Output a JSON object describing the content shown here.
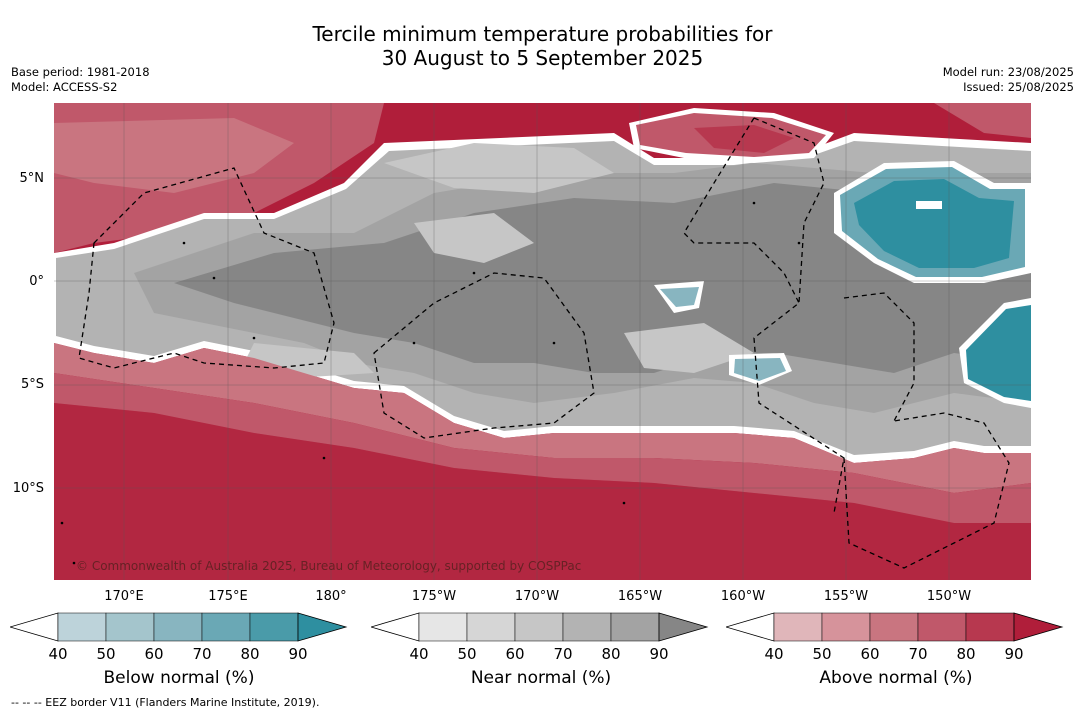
{
  "title_line1": "Tercile minimum temperature probabilities for",
  "title_line2": "30 August to 5 September 2025",
  "meta_left": {
    "base_period": "Base period: 1981-2018",
    "model": "Model: ACCESS-S2"
  },
  "meta_right": {
    "model_run": "Model run: 23/08/2025",
    "issued": "Issued: 25/08/2025"
  },
  "lat_labels": [
    "5°N",
    "0°",
    "5°S",
    "10°S"
  ],
  "lon_labels": [
    "170°E",
    "175°E",
    "180°",
    "175°W",
    "170°W",
    "165°W",
    "160°W",
    "155°W",
    "150°W"
  ],
  "copyright": "© Commonwealth of Australia 2025, Bureau of Meteorology, supported by COSPPac",
  "colorbars": [
    {
      "label": "Below normal (%)",
      "ticks": [
        "40",
        "50",
        "60",
        "70",
        "80",
        "90"
      ],
      "colors": [
        "#ffffff",
        "#bdd3da",
        "#a4c5cc",
        "#88b5c0",
        "#6aa8b5",
        "#4a9ba9",
        "#2e8fa0"
      ]
    },
    {
      "label": "Near normal (%)",
      "ticks": [
        "40",
        "50",
        "60",
        "70",
        "80",
        "90"
      ],
      "colors": [
        "#ffffff",
        "#e6e6e6",
        "#d6d6d6",
        "#c6c6c6",
        "#b3b3b3",
        "#a3a3a3",
        "#868686"
      ]
    },
    {
      "label": "Above normal (%)",
      "ticks": [
        "40",
        "50",
        "60",
        "70",
        "80",
        "90"
      ],
      "colors": [
        "#ffffff",
        "#e0b6ba",
        "#d6939b",
        "#c97580",
        "#c0586a",
        "#b7384f",
        "#b01e3a"
      ]
    }
  ],
  "footer": "-- -- -- EEZ border V11 (Flanders Marine Institute, 2019)."
}
